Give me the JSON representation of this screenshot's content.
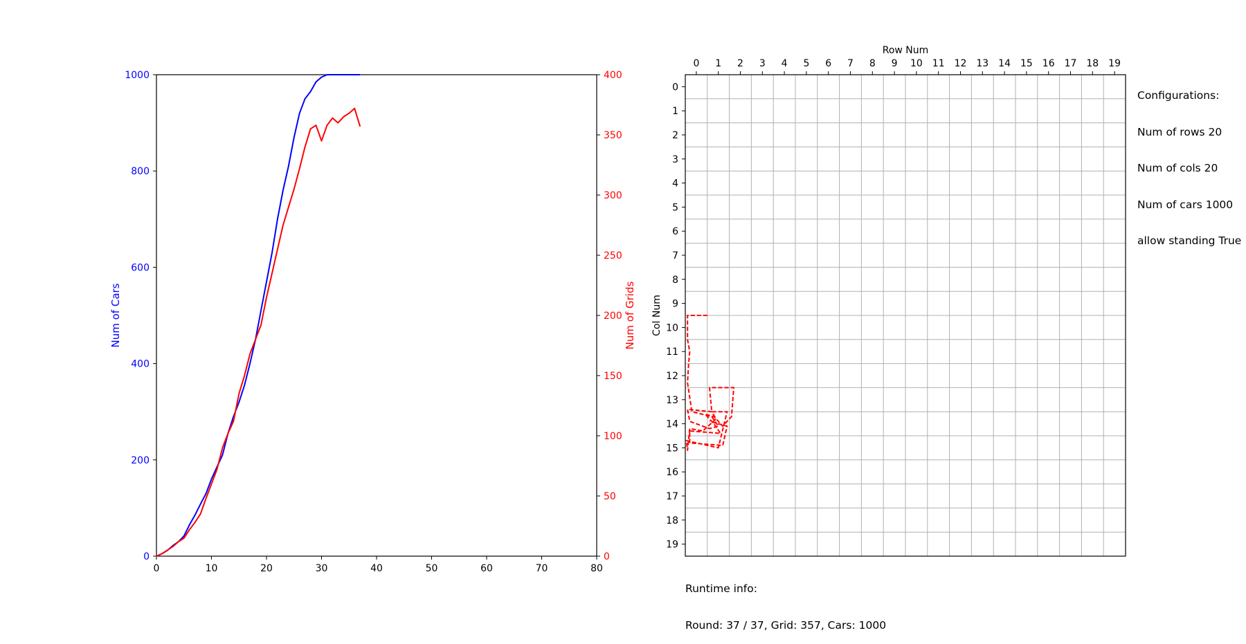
{
  "chart_data": [
    {
      "type": "line",
      "x_ticks": [
        0,
        10,
        20,
        30,
        40,
        50,
        60,
        70,
        80
      ],
      "xlim": [
        0,
        80
      ],
      "left_axis": {
        "label": "Num of Cars",
        "color": "#0000ff",
        "ylim": [
          0,
          1000
        ],
        "ticks": [
          0,
          200,
          400,
          600,
          800,
          1000
        ]
      },
      "right_axis": {
        "label": "Num of Grids",
        "color": "#ff0000",
        "ylim": [
          0,
          400
        ],
        "ticks": [
          0,
          50,
          100,
          150,
          200,
          250,
          300,
          350,
          400
        ]
      },
      "series": [
        {
          "axis": "left",
          "color": "#0000ff",
          "x": [
            0,
            1,
            2,
            3,
            4,
            5,
            6,
            7,
            8,
            9,
            10,
            11,
            12,
            13,
            14,
            15,
            16,
            17,
            18,
            19,
            20,
            21,
            22,
            23,
            24,
            25,
            26,
            27,
            28,
            29,
            30,
            31,
            32,
            33,
            34,
            35,
            36,
            37
          ],
          "values": [
            0,
            5,
            12,
            22,
            30,
            42,
            65,
            85,
            108,
            130,
            160,
            185,
            210,
            255,
            290,
            320,
            355,
            400,
            450,
            510,
            570,
            630,
            700,
            760,
            810,
            870,
            920,
            950,
            965,
            985,
            995,
            1000,
            1000,
            1000,
            1000,
            1000,
            1000,
            1000
          ]
        },
        {
          "axis": "right",
          "color": "#ff0000",
          "x": [
            0,
            1,
            2,
            3,
            4,
            5,
            6,
            7,
            8,
            9,
            10,
            11,
            12,
            13,
            14,
            15,
            16,
            17,
            18,
            19,
            20,
            21,
            22,
            23,
            24,
            25,
            26,
            27,
            28,
            29,
            30,
            31,
            32,
            33,
            34,
            35,
            36,
            37
          ],
          "values": [
            0,
            2,
            5,
            8,
            12,
            15,
            22,
            28,
            35,
            48,
            60,
            72,
            90,
            102,
            112,
            135,
            150,
            168,
            180,
            192,
            215,
            235,
            255,
            275,
            290,
            305,
            322,
            340,
            355,
            358,
            345,
            358,
            364,
            360,
            365,
            368,
            372,
            357
          ]
        }
      ]
    },
    {
      "type": "grid",
      "top_axis_label": "Row Num",
      "left_axis_label": "Col Num",
      "row_ticks": [
        "0",
        "1",
        "2",
        "3",
        "4",
        "5",
        "6",
        "7",
        "8",
        "9",
        "10",
        "11",
        "12",
        "13",
        "14",
        "15",
        "16",
        "17",
        "18",
        "19"
      ],
      "col_ticks": [
        "0",
        "1",
        "2",
        "3",
        "4",
        "5",
        "6",
        "7",
        "8",
        "9",
        "10",
        "11",
        "12",
        "13",
        "14",
        "15",
        "16",
        "17",
        "18",
        "19"
      ],
      "path_color": "#ff0000",
      "path": [
        [
          1,
          10
        ],
        [
          0.1,
          10
        ],
        [
          0.1,
          11
        ],
        [
          0.2,
          11.5
        ],
        [
          0.15,
          12
        ],
        [
          0.1,
          12.8
        ],
        [
          0.3,
          14
        ],
        [
          1.2,
          14.2
        ],
        [
          1.5,
          14.6
        ],
        [
          1.1,
          14.7
        ],
        [
          0.2,
          14.4
        ],
        [
          0.1,
          13.9
        ],
        [
          1.2,
          14
        ],
        [
          1.4,
          14.3
        ],
        [
          0.8,
          14.8
        ],
        [
          0.2,
          14.7
        ],
        [
          0.1,
          15.6
        ],
        [
          0.05,
          15.2
        ],
        [
          1.5,
          15.5
        ],
        [
          1.9,
          14
        ],
        [
          1.2,
          14
        ],
        [
          1.1,
          13
        ],
        [
          2.2,
          13
        ],
        [
          2.1,
          14.2
        ],
        [
          1.7,
          14.6
        ],
        [
          1.3,
          14.2
        ],
        [
          0.9,
          14.1
        ],
        [
          1.3,
          14.5
        ],
        [
          1.6,
          14.9
        ],
        [
          0.2,
          14.8
        ],
        [
          0.2,
          15.3
        ],
        [
          1.7,
          15.4
        ],
        [
          1.9,
          14.6
        ],
        [
          1.1,
          14.4
        ]
      ]
    }
  ],
  "config": {
    "title": "Configurations:",
    "lines": [
      "Num of rows 20",
      "Num of cols 20",
      "Num of cars 1000",
      "allow standing True"
    ]
  },
  "runtime": {
    "title": "Runtime info:",
    "status": "Round: 37 / 37, Grid: 357, Cars: 1000"
  }
}
